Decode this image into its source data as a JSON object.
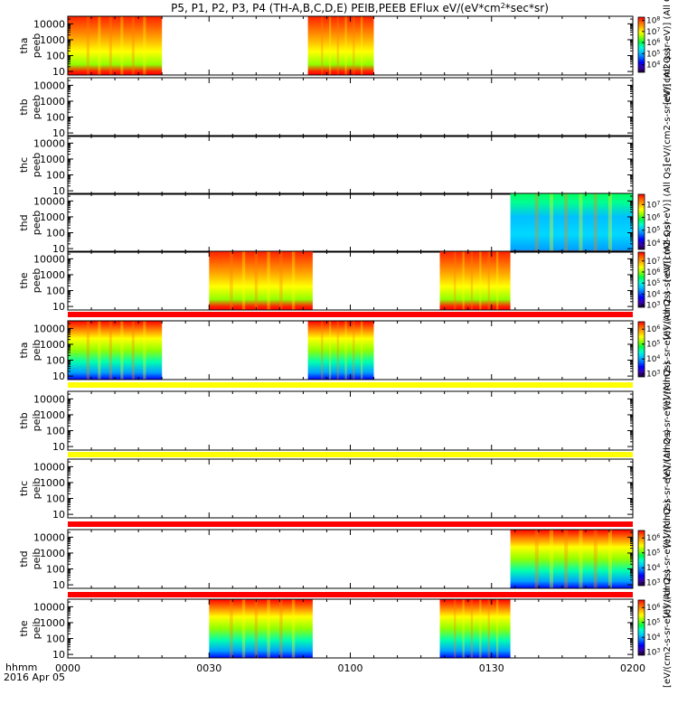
{
  "chart_data": {
    "type": "heatmap",
    "title": "P5, P1, P2, P3, P4 (TH-A,B,C,D,E) PEIB,PEEB EFlux eV/(eV*cm^2*sec*sr)",
    "title_parts": {
      "pre": "P5, P1, P2, P3, P4 (TH-A,B,C,D,E) PEIB,PEEB EFlux eV/(eV*cm",
      "sup": "2",
      "post": "*sec*sr)"
    },
    "time_axis": {
      "ticks": [
        "0000",
        "0030",
        "0100",
        "0130",
        "0200"
      ],
      "label_line1": "hhmm",
      "label_line2": "2016 Apr 05",
      "range_minutes": [
        0,
        120
      ]
    },
    "energy_ticks": [
      "10000",
      "1000",
      "100",
      "10"
    ],
    "energy_tick_values": [
      10000,
      1000,
      100,
      10
    ],
    "y_log": true,
    "yrange_ev": [
      6,
      30000
    ],
    "colorscale": "rainbow",
    "colorbar_exp_base": "10",
    "panels": [
      {
        "probe": "tha",
        "species": "peeb",
        "label1": "tha",
        "label2": "peeb",
        "intervals_min": [
          [
            0,
            20
          ],
          [
            51,
            65
          ]
        ],
        "colorbar": {
          "exponents": [
            "8",
            "7",
            "6",
            "5",
            "4"
          ],
          "min_exp": 3.3,
          "max_exp": 8.3
        },
        "colorbar_label": "[eV/(cm2-s-sr-eV)] (All Qs)"
      },
      {
        "probe": "thb",
        "species": "peeb",
        "label1": "thb",
        "label2": "peeb",
        "intervals_min": [],
        "colorbar_label": "[eV/(cm2-s-sr-eV)] (All Qs)"
      },
      {
        "probe": "thc",
        "species": "peeb",
        "label1": "thc",
        "label2": "peeb",
        "intervals_min": []
      },
      {
        "probe": "thd",
        "species": "peeb",
        "label1": "thd",
        "label2": "peeb",
        "intervals_min": [
          [
            94,
            120
          ]
        ],
        "colorbar": {
          "exponents": [
            "7",
            "6",
            "5",
            "4"
          ],
          "min_exp": 3.5,
          "max_exp": 7.8
        },
        "colorbar_label": "[eV/(cm2-s-sr-eV)] (All Qs)"
      },
      {
        "probe": "the",
        "species": "peeb",
        "label1": "the",
        "label2": "peeb",
        "intervals_min": [
          [
            30,
            52
          ],
          [
            79,
            94
          ]
        ],
        "colorbar": {
          "exponents": [
            "7",
            "6",
            "5",
            "4",
            "3"
          ],
          "min_exp": 2.8,
          "max_exp": 7.8
        },
        "colorbar_label": "[eV/(cm2-s-sr-eV)] (All Qs)"
      },
      {
        "probe": "tha",
        "species": "peib",
        "label1": "tha",
        "label2": "peib",
        "intervals_min": [
          [
            0,
            20
          ],
          [
            51,
            65
          ]
        ],
        "colorbar": {
          "exponents": [
            "6",
            "5",
            "4",
            "3"
          ],
          "min_exp": 2.8,
          "max_exp": 6.5
        },
        "colorbar_label": "[eV/(cm2-s-sr-eV)] (All Qs)"
      },
      {
        "probe": "thb",
        "species": "peib",
        "label1": "thb",
        "label2": "peib",
        "intervals_min": [],
        "colorbar_label": "[eV/(cm2-s-sr-eV)] (All Qs)"
      },
      {
        "probe": "thc",
        "species": "peib",
        "label1": "thc",
        "label2": "peib",
        "intervals_min": [],
        "colorbar_label": "[eV/(cm2-s-sr-eV)] (All Qs)"
      },
      {
        "probe": "thd",
        "species": "peib",
        "label1": "thd",
        "label2": "peib",
        "intervals_min": [
          [
            94,
            120
          ]
        ],
        "colorbar": {
          "exponents": [
            "6",
            "5",
            "4",
            "3"
          ],
          "min_exp": 2.8,
          "max_exp": 6.5
        },
        "colorbar_label": "[eV/(cm2-s-sr-eV)] (All Qs)"
      },
      {
        "probe": "the",
        "species": "peib",
        "label1": "the",
        "label2": "peib",
        "intervals_min": [
          [
            30,
            52
          ],
          [
            79,
            94
          ]
        ],
        "colorbar": {
          "exponents": [
            "6",
            "5",
            "4",
            "3"
          ],
          "min_exp": 2.8,
          "max_exp": 6.5
        },
        "colorbar_label": "[eV/(cm2-s-sr-eV)] (All Qs)"
      }
    ]
  }
}
